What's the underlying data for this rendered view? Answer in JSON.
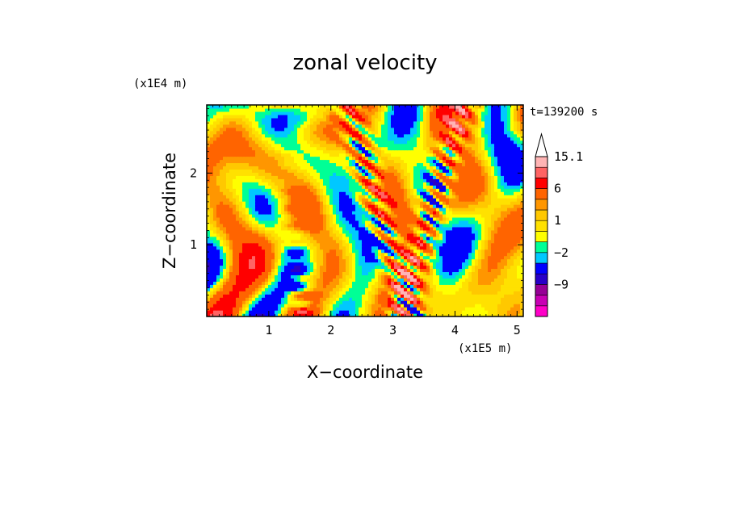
{
  "chart_data": {
    "type": "heatmap",
    "title": "zonal velocity",
    "xlabel": "X−coordinate",
    "ylabel": "Z−coordinate",
    "x_unit": "(x1E5 m)",
    "y_unit": "(x1E4 m)",
    "time_label": "t=139200 s",
    "xlim": [
      0,
      5.1
    ],
    "ylim": [
      0,
      2.95
    ],
    "x_ticks": [
      "1",
      "2",
      "3",
      "4",
      "5"
    ],
    "y_ticks": [
      "1",
      "2"
    ],
    "x_tick_values": [
      1,
      2,
      3,
      4,
      5
    ],
    "y_tick_values": [
      1,
      2
    ],
    "colorbar": {
      "labels": [
        "15.1",
        "6",
        "1",
        "−2",
        "−9"
      ],
      "label_values": [
        15.1,
        6,
        1,
        -2,
        -9
      ],
      "levels": [
        -15,
        -12,
        -9,
        -6,
        -3,
        -2,
        -1,
        0,
        1,
        2,
        3,
        6,
        9,
        12,
        15.1
      ],
      "colors": [
        "#ff00c8",
        "#c800b4",
        "#960096",
        "#2800c8",
        "#0000ff",
        "#00c8ff",
        "#00ff96",
        "#ffff00",
        "#ffe100",
        "#ffc800",
        "#ff9600",
        "#ff6400",
        "#ff0000",
        "#ff6464",
        "#ffb4b4"
      ],
      "extend": "max"
    }
  }
}
